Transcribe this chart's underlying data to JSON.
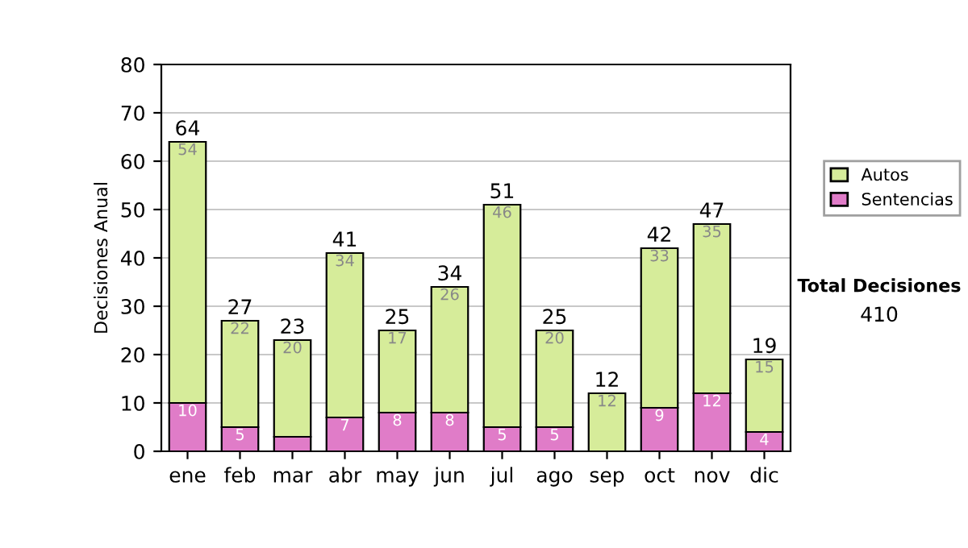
{
  "chart_data": {
    "type": "bar",
    "stacked": true,
    "ylabel": "Decisiones Anual",
    "categories": [
      "ene",
      "feb",
      "mar",
      "abr",
      "may",
      "jun",
      "jul",
      "ago",
      "sep",
      "oct",
      "nov",
      "dic"
    ],
    "series": [
      {
        "name": "Sentencias",
        "color": "#e07cc8",
        "values": [
          10,
          5,
          3,
          7,
          8,
          8,
          5,
          5,
          0,
          9,
          12,
          4
        ],
        "value_labels": [
          "10",
          "5",
          null,
          "7",
          "8",
          "8",
          "5",
          "5",
          null,
          "9",
          "12",
          "4"
        ]
      },
      {
        "name": "Autos",
        "color": "#d6ec9a",
        "values": [
          54,
          22,
          20,
          34,
          17,
          26,
          46,
          20,
          12,
          33,
          35,
          15
        ],
        "value_labels": [
          "54",
          "22",
          "20",
          "34",
          "17",
          "26",
          "46",
          "20",
          "12",
          "33",
          "35",
          "15"
        ]
      }
    ],
    "totals": [
      "64",
      "27",
      "23",
      "41",
      "25",
      "34",
      "51",
      "25",
      "12",
      "42",
      "47",
      "19"
    ],
    "ylim": [
      0,
      80
    ],
    "yticks": [
      0,
      10,
      20,
      30,
      40,
      50,
      60,
      70,
      80
    ],
    "grid": "y",
    "legend": "right",
    "annotations": [
      "Total Decisiones",
      "410"
    ]
  }
}
